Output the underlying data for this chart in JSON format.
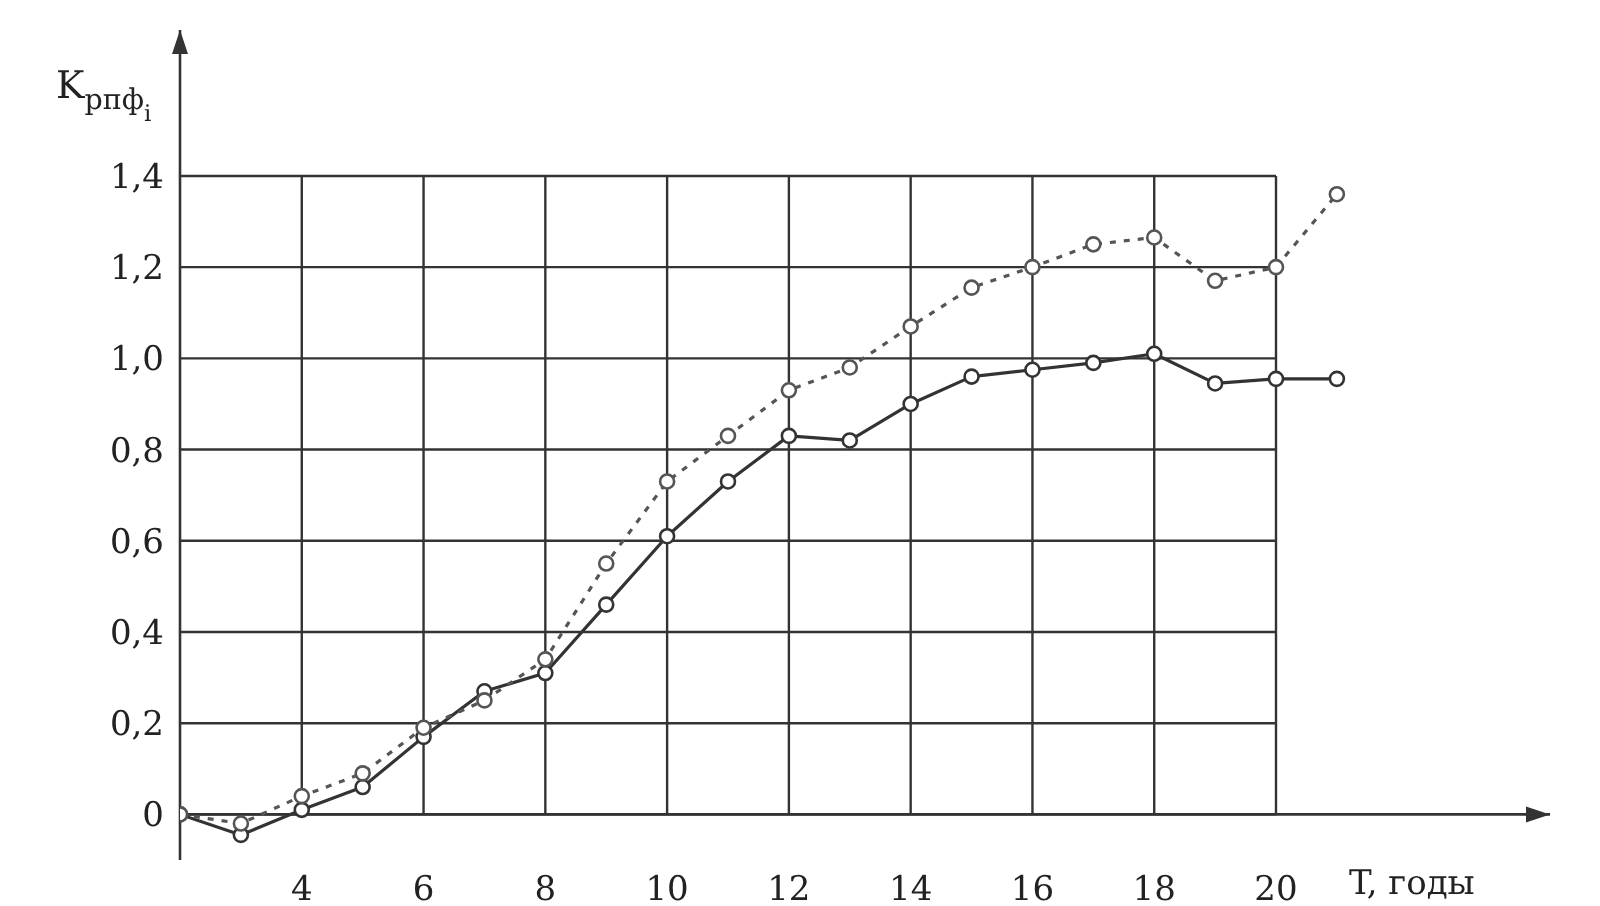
{
  "chart_data": {
    "type": "line",
    "xlabel": "T, годы",
    "ylabel": "K$_{рпф}$$_{i}$",
    "x": [
      2,
      3,
      4,
      5,
      6,
      7,
      8,
      9,
      10,
      11,
      12,
      13,
      14,
      15,
      16,
      17,
      18,
      19,
      20,
      21
    ],
    "series": [
      {
        "color": "#333333",
        "line_style": "solid",
        "values": [
          0,
          -0.045,
          0.01,
          0.06,
          0.17,
          0.27,
          0.31,
          0.46,
          0.61,
          0.73,
          0.83,
          0.82,
          0.9,
          0.96,
          0.975,
          0.99,
          1.01,
          0.945,
          0.955,
          0.955
        ]
      },
      {
        "color": "#555555",
        "line_style": "dotted",
        "values": [
          0,
          -0.02,
          0.04,
          0.09,
          0.19,
          0.25,
          0.34,
          0.55,
          0.73,
          0.83,
          0.93,
          0.98,
          1.07,
          1.155,
          1.2,
          1.25,
          1.265,
          1.17,
          1.2,
          1.36
        ]
      }
    ],
    "xlim": [
      2,
      24.5
    ],
    "xticks": [
      4,
      6,
      8,
      10,
      12,
      14,
      16,
      18,
      20
    ],
    "ylim": [
      -0.1,
      1.72
    ],
    "yticks": [
      {
        "value": 0,
        "label": "0"
      },
      {
        "value": 0.2,
        "label": "0,2"
      },
      {
        "value": 0.4,
        "label": "0,4"
      },
      {
        "value": 0.6,
        "label": "0,6"
      },
      {
        "value": 0.8,
        "label": "0,8"
      },
      {
        "value": 1.0,
        "label": "1,0"
      },
      {
        "value": 1.2,
        "label": "1,2"
      },
      {
        "value": 1.4,
        "label": "1,4"
      }
    ],
    "grid": true,
    "marker": "circle"
  }
}
